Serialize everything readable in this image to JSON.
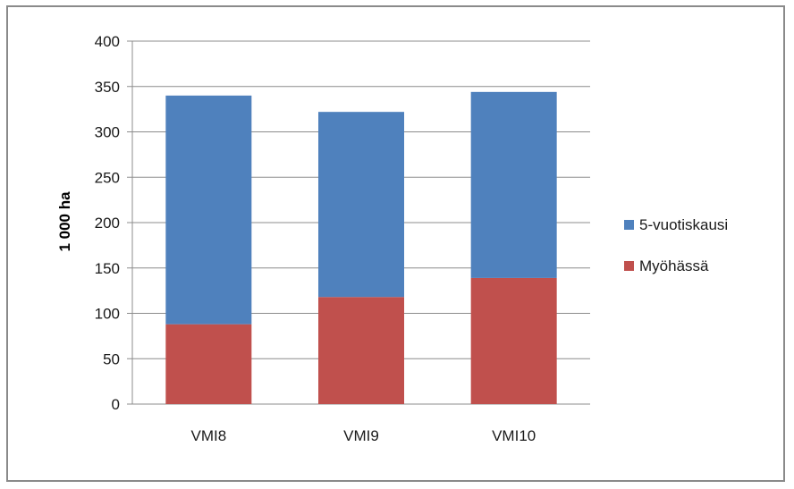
{
  "chart_data": {
    "type": "bar",
    "stacked": true,
    "categories": [
      "VMI8",
      "VMI9",
      "VMI10"
    ],
    "series": [
      {
        "name": "Myöhässä",
        "values": [
          88,
          118,
          139
        ],
        "color": "#C0504D"
      },
      {
        "name": "5-vuotiskausi",
        "values": [
          252,
          204,
          205
        ],
        "color": "#4F81BD"
      }
    ],
    "ylabel": "1 000 ha",
    "xlabel": "",
    "ylim": [
      0,
      400
    ],
    "yticks": [
      0,
      50,
      100,
      150,
      200,
      250,
      300,
      350,
      400
    ],
    "grid": true,
    "legend_position": "right",
    "legend_order": [
      "5-vuotiskausi",
      "Myöhässä"
    ]
  }
}
